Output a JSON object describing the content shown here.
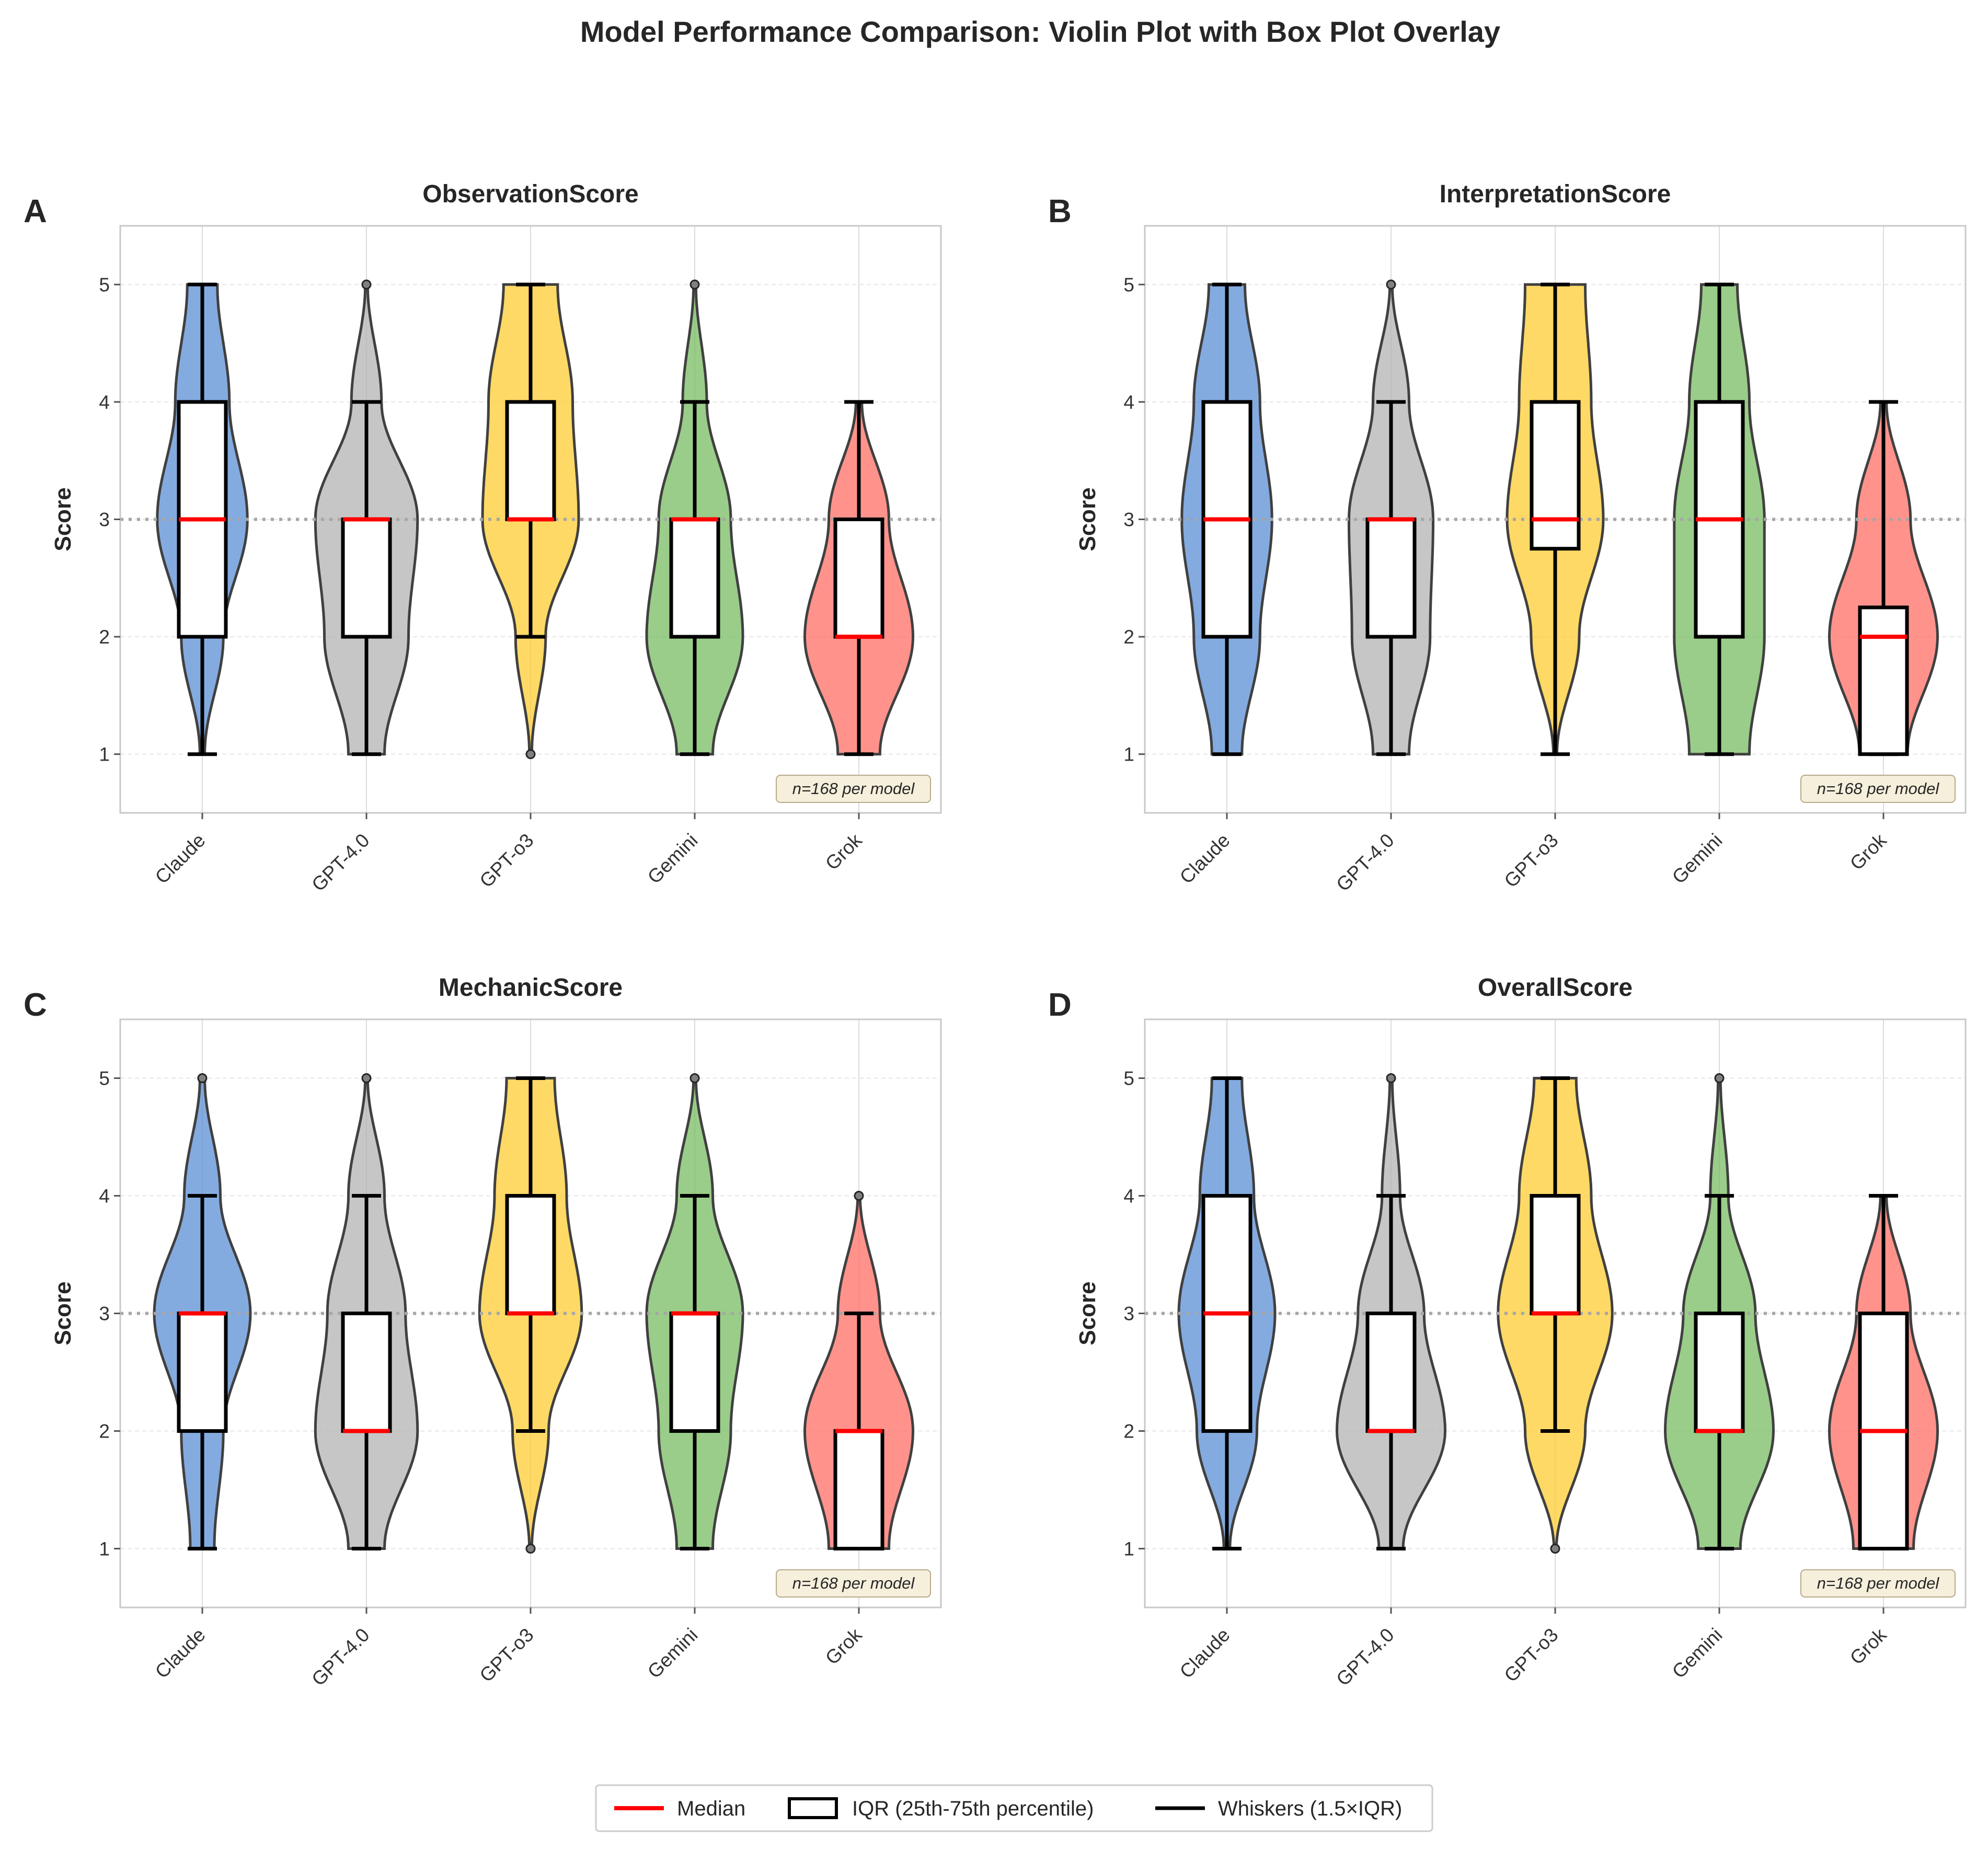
{
  "figure": {
    "title": "Model Performance Comparison: Violin Plot with Box Plot Overlay"
  },
  "colors": {
    "Claude": "#5b8fd6",
    "GPT-4.0": "#b3b3b3",
    "GPT-o3": "#ffcc33",
    "Gemini": "#78bc61",
    "Grok": "#ff6f66",
    "median": "#ff0000",
    "reference_line": "#a6a6a6",
    "annotation_fill": "#f6efdc"
  },
  "legend": {
    "position": "bottom-center",
    "items": [
      {
        "label": "Median",
        "symbol": "median-line"
      },
      {
        "label": "IQR (25th-75th percentile)",
        "symbol": "iqr-box"
      },
      {
        "label": "Whiskers (1.5×IQR)",
        "symbol": "whisker-line"
      }
    ]
  },
  "chart_data": [
    {
      "panel": "A",
      "type": "violin",
      "title": "ObservationScore",
      "ylabel": "Score",
      "ylim": [
        0.5,
        5.5
      ],
      "yticks": [
        1,
        2,
        3,
        4,
        5
      ],
      "reference_line": 3,
      "grid": true,
      "annotation": "n=168 per model",
      "categories": [
        "Claude",
        "GPT-4.0",
        "GPT-o3",
        "Gemini",
        "Grok"
      ],
      "series": [
        {
          "model": "Claude",
          "density": [
            0.04,
            0.35,
            0.75,
            0.45,
            0.25
          ],
          "box": {
            "q1": 2,
            "median": 3,
            "q3": 4,
            "whisker_low": 1,
            "whisker_high": 5
          },
          "outliers": []
        },
        {
          "model": "GPT-4.0",
          "density": [
            0.3,
            0.7,
            0.85,
            0.25,
            0.02
          ],
          "box": {
            "q1": 2,
            "median": 3,
            "q3": 3,
            "whisker_low": 1,
            "whisker_high": 4
          },
          "outliers": [
            5
          ]
        },
        {
          "model": "GPT-o3",
          "density": [
            0.02,
            0.25,
            0.8,
            0.7,
            0.45
          ],
          "box": {
            "q1": 3,
            "median": 3,
            "q3": 4,
            "whisker_low": 2,
            "whisker_high": 5
          },
          "outliers": [
            1
          ]
        },
        {
          "model": "Gemini",
          "density": [
            0.3,
            0.8,
            0.6,
            0.2,
            0.02
          ],
          "box": {
            "q1": 2,
            "median": 3,
            "q3": 3,
            "whisker_low": 1,
            "whisker_high": 4
          },
          "outliers": [
            5
          ]
        },
        {
          "model": "Grok",
          "density": [
            0.35,
            0.9,
            0.5,
            0.05
          ],
          "box": {
            "q1": 2,
            "median": 2,
            "q3": 3,
            "whisker_low": 1,
            "whisker_high": 4
          },
          "outliers": []
        }
      ]
    },
    {
      "panel": "B",
      "type": "violin",
      "title": "InterpretationScore",
      "ylabel": "Score",
      "ylim": [
        0.5,
        5.5
      ],
      "yticks": [
        1,
        2,
        3,
        4,
        5
      ],
      "reference_line": 3,
      "grid": true,
      "annotation": "n=168 per model",
      "categories": [
        "Claude",
        "GPT-4.0",
        "GPT-o3",
        "Gemini",
        "Grok"
      ],
      "series": [
        {
          "model": "Claude",
          "density": [
            0.25,
            0.55,
            0.75,
            0.55,
            0.3
          ],
          "box": {
            "q1": 2,
            "median": 3,
            "q3": 4,
            "whisker_low": 1,
            "whisker_high": 5
          },
          "outliers": []
        },
        {
          "model": "GPT-4.0",
          "density": [
            0.3,
            0.65,
            0.7,
            0.3,
            0.02
          ],
          "box": {
            "q1": 2,
            "median": 3,
            "q3": 3,
            "whisker_low": 1,
            "whisker_high": 4
          },
          "outliers": [
            5
          ]
        },
        {
          "model": "GPT-o3",
          "density": [
            0.03,
            0.4,
            0.8,
            0.6,
            0.5
          ],
          "box": {
            "q1": 2.75,
            "median": 3,
            "q3": 4,
            "whisker_low": 1,
            "whisker_high": 5
          },
          "outliers": []
        },
        {
          "model": "Gemini",
          "density": [
            0.5,
            0.75,
            0.75,
            0.5,
            0.3
          ],
          "box": {
            "q1": 2,
            "median": 3,
            "q3": 4,
            "whisker_low": 1,
            "whisker_high": 5
          },
          "outliers": []
        },
        {
          "model": "Grok",
          "density": [
            0.4,
            0.9,
            0.45,
            0.05
          ],
          "box": {
            "q1": 1,
            "median": 2,
            "q3": 2.25,
            "whisker_low": 1,
            "whisker_high": 4
          },
          "outliers": []
        }
      ]
    },
    {
      "panel": "C",
      "type": "violin",
      "title": "MechanicScore",
      "ylabel": "Score",
      "ylim": [
        0.5,
        5.5
      ],
      "yticks": [
        1,
        2,
        3,
        4,
        5
      ],
      "reference_line": 3,
      "grid": true,
      "annotation": "n=168 per model",
      "categories": [
        "Claude",
        "GPT-4.0",
        "GPT-o3",
        "Gemini",
        "Grok"
      ],
      "series": [
        {
          "model": "Claude",
          "density": [
            0.2,
            0.35,
            0.8,
            0.3,
            0.04
          ],
          "box": {
            "q1": 2,
            "median": 3,
            "q3": 3,
            "whisker_low": 1,
            "whisker_high": 4
          },
          "outliers": [
            5
          ]
        },
        {
          "model": "GPT-4.0",
          "density": [
            0.3,
            0.85,
            0.65,
            0.3,
            0.02
          ],
          "box": {
            "q1": 2,
            "median": 2,
            "q3": 3,
            "whisker_low": 1,
            "whisker_high": 4
          },
          "outliers": [
            5
          ]
        },
        {
          "model": "GPT-o3",
          "density": [
            0.02,
            0.3,
            0.85,
            0.6,
            0.4
          ],
          "box": {
            "q1": 3,
            "median": 3,
            "q3": 4,
            "whisker_low": 2,
            "whisker_high": 5
          },
          "outliers": [
            1
          ]
        },
        {
          "model": "Gemini",
          "density": [
            0.3,
            0.6,
            0.8,
            0.3,
            0.02
          ],
          "box": {
            "q1": 2,
            "median": 3,
            "q3": 3,
            "whisker_low": 1,
            "whisker_high": 4
          },
          "outliers": [
            5
          ]
        },
        {
          "model": "Grok",
          "density": [
            0.5,
            0.9,
            0.35,
            0.02
          ],
          "box": {
            "q1": 1,
            "median": 2,
            "q3": 2,
            "whisker_low": 1,
            "whisker_high": 3
          },
          "outliers": [
            4
          ]
        }
      ]
    },
    {
      "panel": "D",
      "type": "violin",
      "title": "OverallScore",
      "ylabel": "Score",
      "ylim": [
        0.5,
        5.5
      ],
      "yticks": [
        1,
        2,
        3,
        4,
        5
      ],
      "reference_line": 3,
      "grid": true,
      "annotation": "n=168 per model",
      "categories": [
        "Claude",
        "GPT-4.0",
        "GPT-o3",
        "Gemini",
        "Grok"
      ],
      "series": [
        {
          "model": "Claude",
          "density": [
            0.05,
            0.5,
            0.8,
            0.45,
            0.25
          ],
          "box": {
            "q1": 2,
            "median": 3,
            "q3": 4,
            "whisker_low": 1,
            "whisker_high": 5
          },
          "outliers": []
        },
        {
          "model": "GPT-4.0",
          "density": [
            0.2,
            0.9,
            0.55,
            0.15,
            0.02
          ],
          "box": {
            "q1": 2,
            "median": 2,
            "q3": 3,
            "whisker_low": 1,
            "whisker_high": 4
          },
          "outliers": [
            5
          ]
        },
        {
          "model": "GPT-o3",
          "density": [
            0.02,
            0.5,
            0.95,
            0.6,
            0.35
          ],
          "box": {
            "q1": 3,
            "median": 3,
            "q3": 4,
            "whisker_low": 2,
            "whisker_high": 5
          },
          "outliers": [
            1
          ]
        },
        {
          "model": "Gemini",
          "density": [
            0.35,
            0.9,
            0.6,
            0.15,
            0.02
          ],
          "box": {
            "q1": 2,
            "median": 2,
            "q3": 3,
            "whisker_low": 1,
            "whisker_high": 4
          },
          "outliers": [
            5
          ]
        },
        {
          "model": "Grok",
          "density": [
            0.5,
            0.9,
            0.45,
            0.05
          ],
          "box": {
            "q1": 1,
            "median": 2,
            "q3": 3,
            "whisker_low": 1,
            "whisker_high": 4
          },
          "outliers": []
        }
      ]
    }
  ]
}
